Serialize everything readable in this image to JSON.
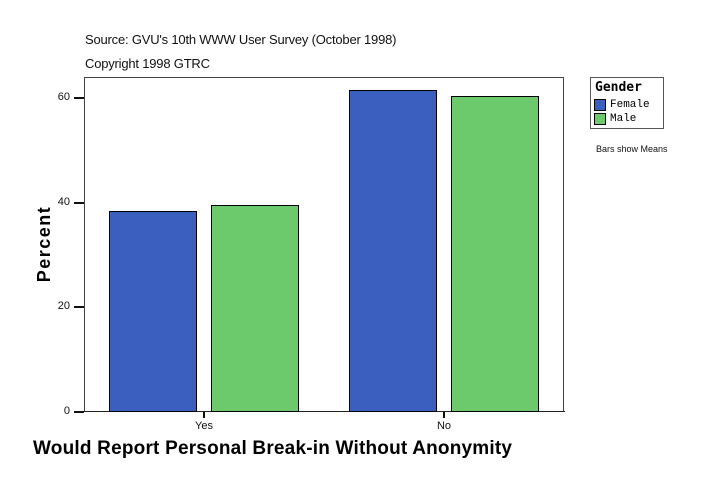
{
  "header": {
    "source": "Source: GVU's 10th WWW User Survey (October 1998)",
    "copyright": "Copyright 1998 GTRC"
  },
  "legend": {
    "title": "Gender",
    "items": [
      {
        "label": "Female",
        "color": "#3a5fbf"
      },
      {
        "label": "Male",
        "color": "#6cc96c"
      }
    ],
    "note": "Bars show Means"
  },
  "axes": {
    "ylabel": "Percent",
    "xlabel": "Would Report Personal Break-in Without Anonymity",
    "yticks": [
      "0",
      "20",
      "40",
      "60"
    ],
    "xticks": [
      "Yes",
      "No"
    ]
  },
  "chart_data": {
    "type": "bar",
    "title": "",
    "subtitle": "Source: GVU's 10th WWW User Survey (October 1998); Copyright 1998 GTRC",
    "categories": [
      "Yes",
      "No"
    ],
    "series": [
      {
        "name": "Female",
        "color": "#3a5fbf",
        "values": [
          38.4,
          61.6
        ]
      },
      {
        "name": "Male",
        "color": "#6cc96c",
        "values": [
          39.6,
          60.4
        ]
      }
    ],
    "xlabel": "Would Report Personal Break-in Without Anonymity",
    "ylabel": "Percent",
    "ylim": [
      0,
      64
    ],
    "yticks": [
      0,
      20,
      40,
      60
    ],
    "grid": false,
    "legend_position": "right",
    "legend_title": "Gender",
    "annotations": [
      "Bars show Means"
    ]
  }
}
